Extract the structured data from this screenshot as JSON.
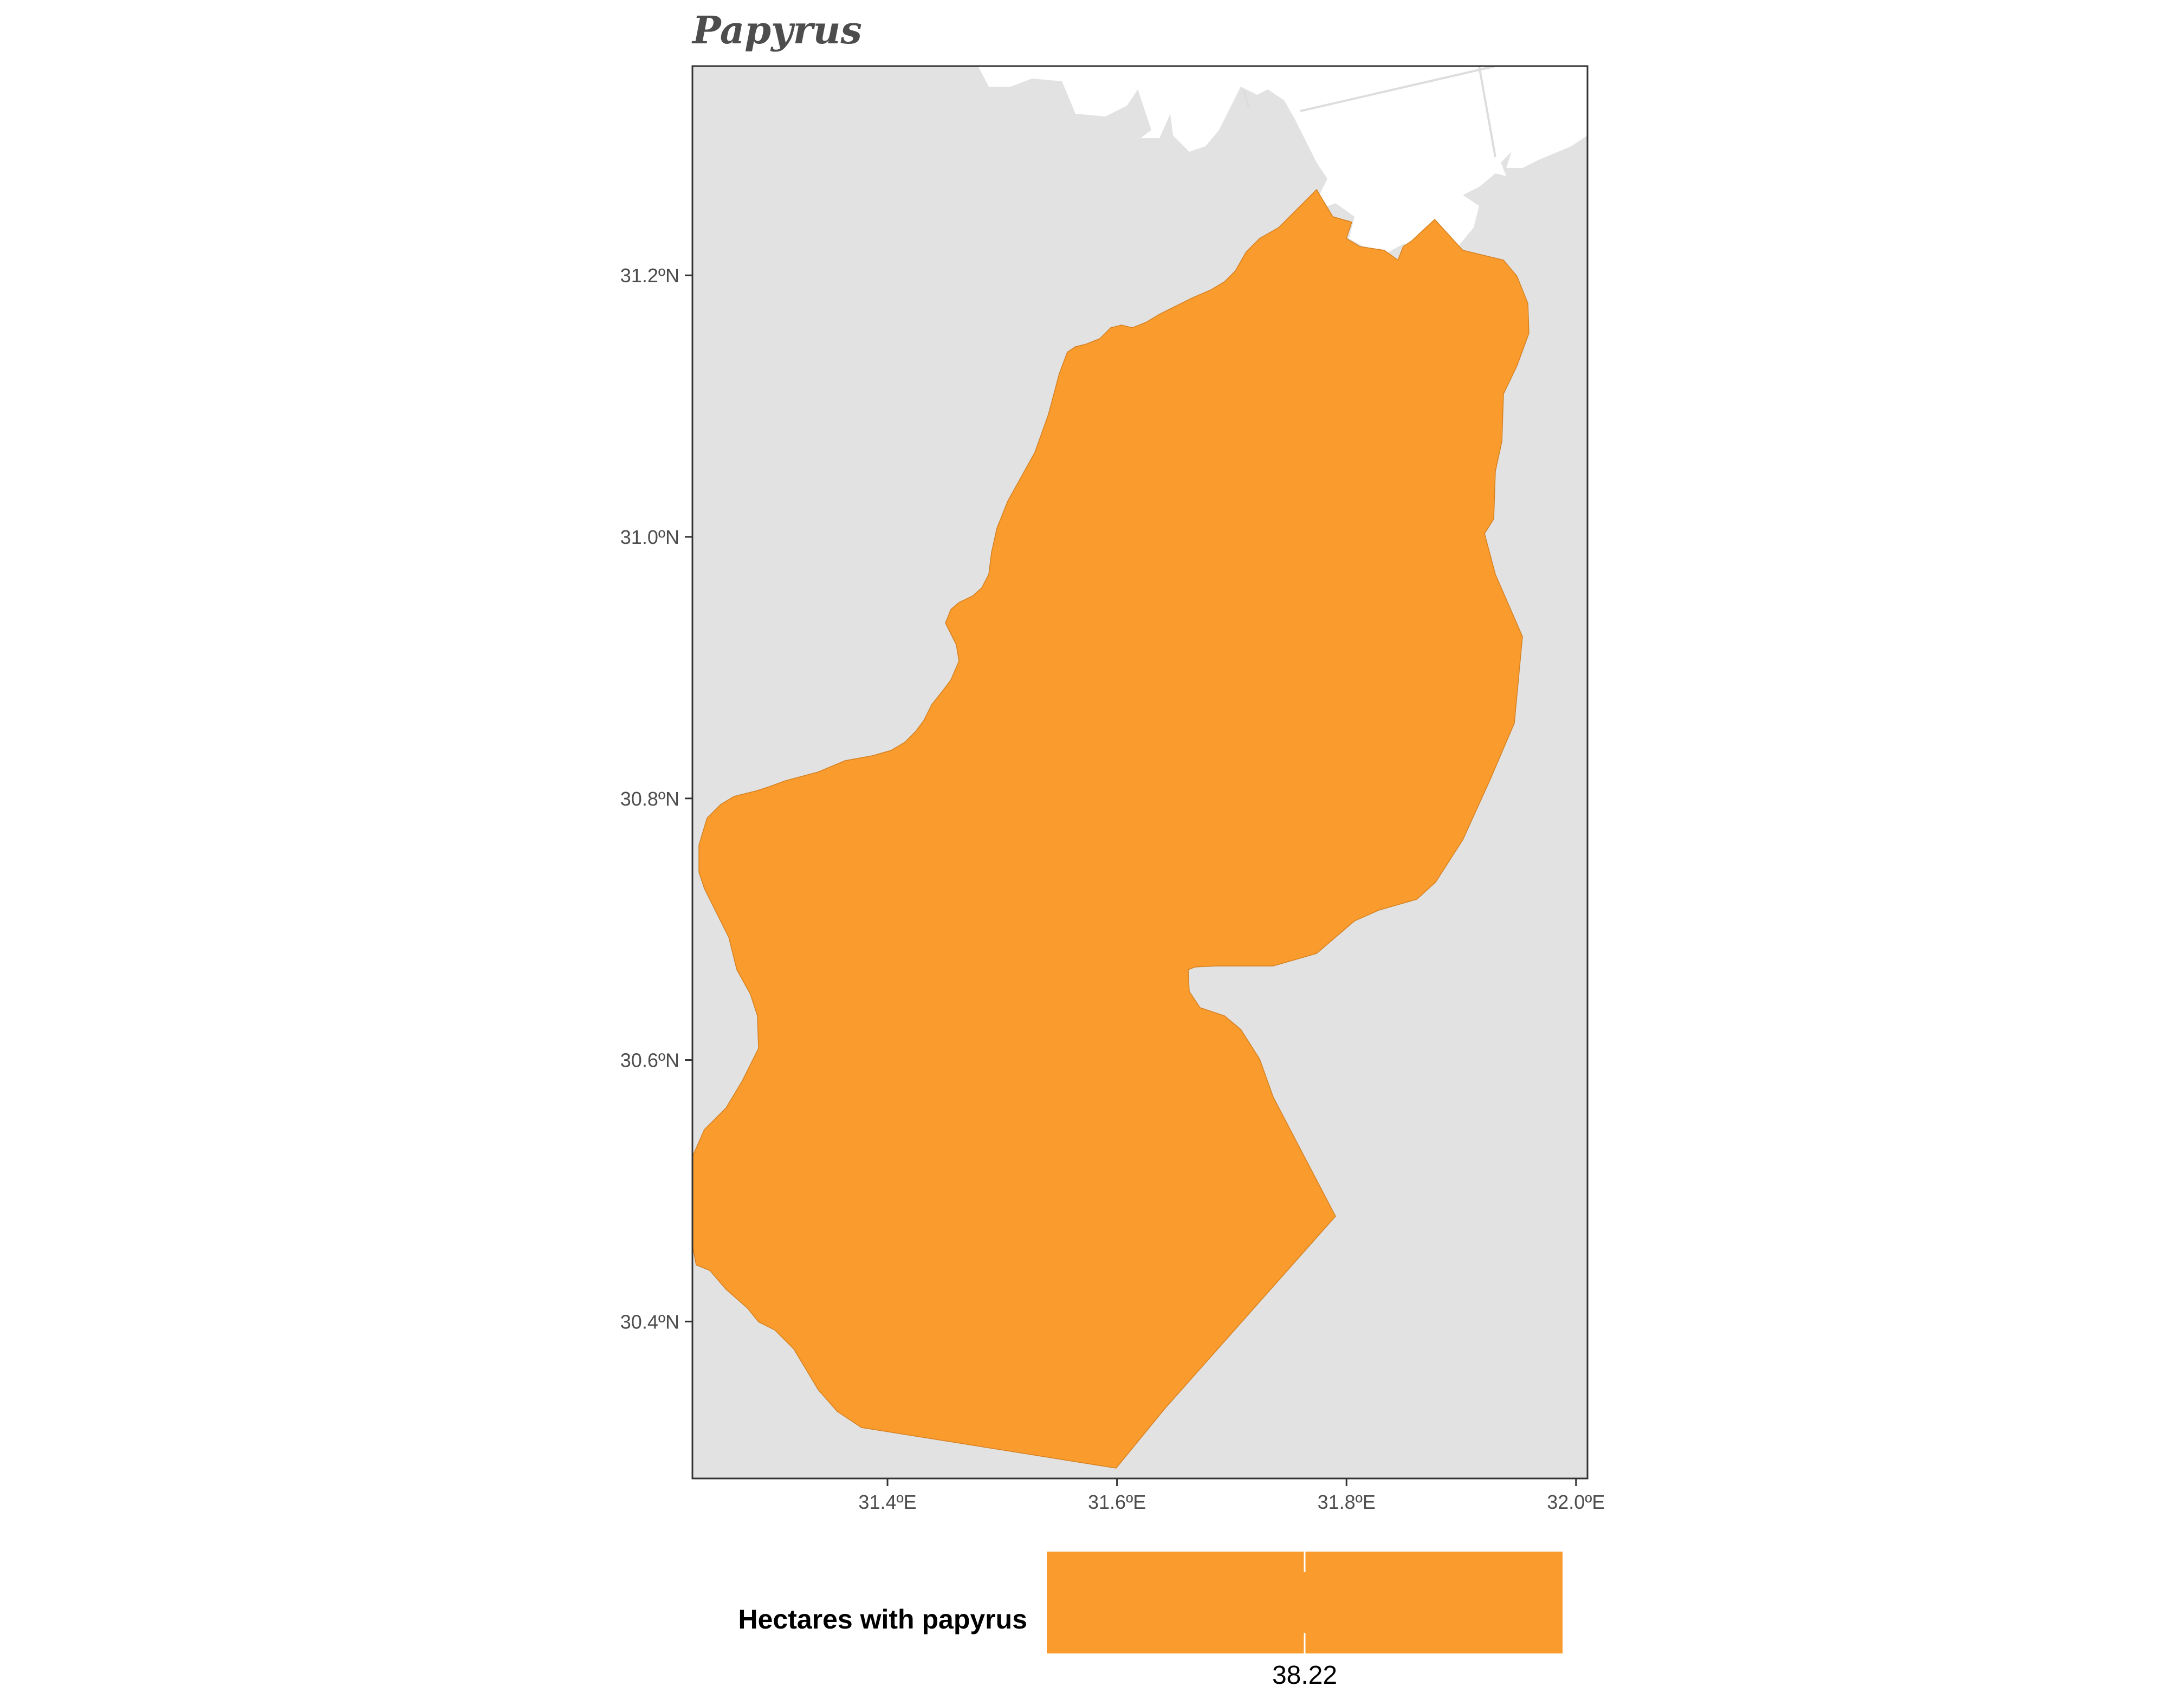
{
  "title": "Papyrus",
  "colors": {
    "background_panel": "#e2e2e2",
    "region_fill": "#f99b2d",
    "land_other": "#ffffff",
    "border_lines": "#dddddd",
    "axis_text": "#4d4d4d"
  },
  "chart_data": {
    "type": "map",
    "title": "Papyrus",
    "x_axis": {
      "range": [
        31.23,
        32.01
      ],
      "ticks": [
        {
          "value": 31.4,
          "label": "31.4ºE"
        },
        {
          "value": 31.6,
          "label": "31.6ºE"
        },
        {
          "value": 31.8,
          "label": "31.8ºE"
        },
        {
          "value": 32.0,
          "label": "32.0ºE"
        }
      ]
    },
    "y_axis": {
      "range": [
        30.28,
        31.36
      ],
      "ticks": [
        {
          "value": 31.2,
          "label": "31.2ºN"
        },
        {
          "value": 31.0,
          "label": "31.0ºN"
        },
        {
          "value": 30.8,
          "label": "30.8ºN"
        },
        {
          "value": 30.6,
          "label": "30.6ºN"
        },
        {
          "value": 30.4,
          "label": "30.4ºN"
        }
      ]
    },
    "legend": {
      "title": "Hectares with papyrus",
      "value_label": "38.22",
      "placement": "bottom"
    }
  }
}
